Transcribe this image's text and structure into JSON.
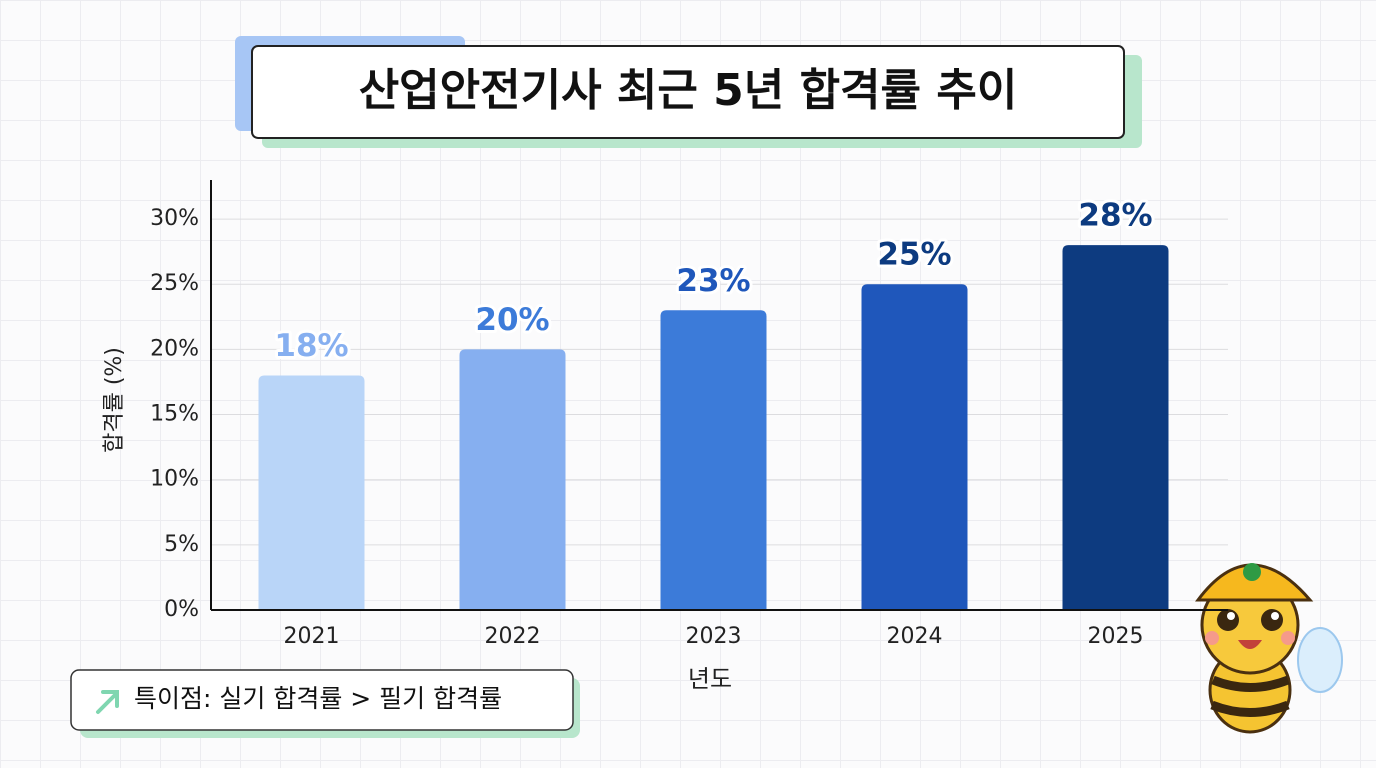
{
  "chart_data": {
    "type": "bar",
    "title": "산업안전기사 최근 5년 합격률 추이",
    "x_label": "년도",
    "y_label": "합격률 (%)",
    "annotation": "특이점: 실기 합격률 > 필기 합격률",
    "categories": [
      "2021",
      "2022",
      "2023",
      "2024",
      "2025"
    ],
    "values": [
      18,
      20,
      23,
      25,
      28
    ],
    "value_labels": [
      "18%",
      "20%",
      "23%",
      "25%",
      "28%"
    ],
    "colors": [
      "#b9d5f8",
      "#86aff0",
      "#3c7bd9",
      "#1f57bb",
      "#0d3b80"
    ],
    "ylim": [
      0,
      33
    ],
    "yticks": [
      {
        "value": 0,
        "label": "0%"
      },
      {
        "value": 5,
        "label": "5%"
      },
      {
        "value": 10,
        "label": "10%"
      },
      {
        "value": 15,
        "label": "15%"
      },
      {
        "value": 20,
        "label": "20%"
      },
      {
        "value": 25,
        "label": "25%"
      },
      {
        "value": 30,
        "label": "30%"
      }
    ],
    "grid": true
  }
}
